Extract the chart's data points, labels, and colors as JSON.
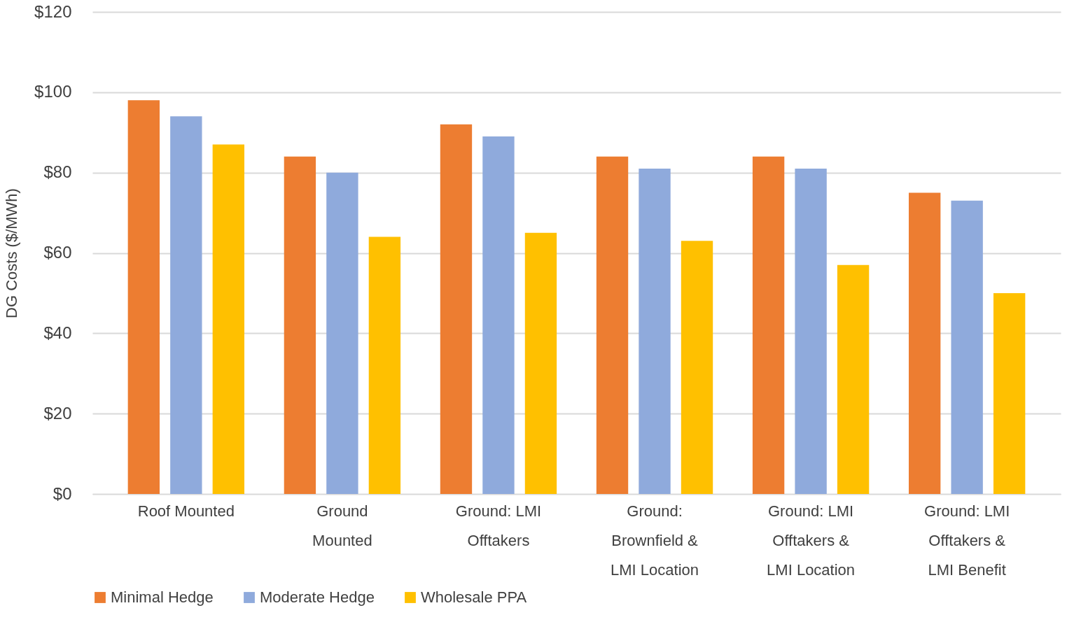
{
  "chart_data": {
    "type": "bar",
    "ylabel": "DG Costs ($/MWh)",
    "categories": [
      "Roof Mounted",
      "Ground Mounted",
      "Ground: LMI Offtakers",
      "Ground: Brownfield & LMI Location",
      "Ground: LMI Offtakers & LMI Location",
      "Ground: LMI Offtakers & LMI Benefit"
    ],
    "series": [
      {
        "name": "Minimal Hedge",
        "color": "#ed7d31",
        "values": [
          98,
          84,
          92,
          84,
          84,
          75
        ]
      },
      {
        "name": "Moderate Hedge",
        "color": "#8faadc",
        "values": [
          94,
          80,
          89,
          81,
          81,
          73
        ]
      },
      {
        "name": "Wholesale PPA",
        "color": "#ffc000",
        "values": [
          87,
          64,
          65,
          63,
          57,
          50
        ]
      }
    ],
    "ylim": [
      0,
      120
    ],
    "yticks": [
      {
        "value": 0,
        "label": "$0"
      },
      {
        "value": 20,
        "label": "$20"
      },
      {
        "value": 40,
        "label": "$40"
      },
      {
        "value": 60,
        "label": "$60"
      },
      {
        "value": 80,
        "label": "$80"
      },
      {
        "value": 100,
        "label": "$100"
      },
      {
        "value": 120,
        "label": "$120"
      }
    ],
    "grid": "y",
    "legend": "bottom"
  }
}
